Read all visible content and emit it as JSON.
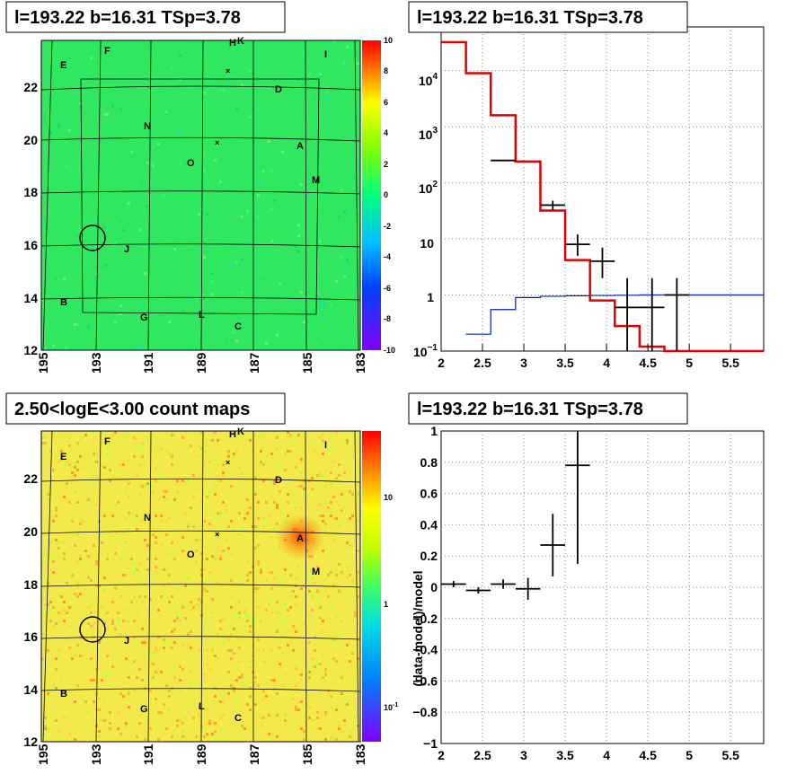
{
  "panels": {
    "p1_title": "l=193.22 b=16.31 TSp=3.78",
    "p2_title": "l=193.22 b=16.31 TSp=3.78",
    "p3_title": "2.50<logE<3.00 count maps",
    "p4_title": "l=193.22 b=16.31 TSp=3.78"
  },
  "chart_data": [
    {
      "type": "heatmap",
      "title": "l=193.22 b=16.31 TSp=3.78",
      "x_ticks": [
        "195",
        "193",
        "191",
        "189",
        "187",
        "185",
        "183"
      ],
      "y_ticks": [
        "12",
        "14",
        "16",
        "18",
        "20",
        "22"
      ],
      "colorbar_ticks": [
        "10",
        "8",
        "6",
        "4",
        "2",
        "0",
        "-2",
        "-4",
        "-6",
        "-8",
        "-10"
      ],
      "source_labels": [
        "F",
        "H",
        "K",
        "I",
        "E",
        "D",
        "N",
        "A",
        "O",
        "M",
        "J",
        "B",
        "G",
        "L",
        "C"
      ]
    },
    {
      "type": "line",
      "title": "l=193.22 b=16.31 TSp=3.78",
      "log_y": true,
      "x_ticks": [
        "2",
        "2.5",
        "3",
        "3.5",
        "4",
        "4.5",
        "5",
        "5.5"
      ],
      "y_ticks": [
        "10^-1",
        "1",
        "10",
        "10^2",
        "10^3",
        "10^4"
      ],
      "model_red_edges": [
        2.0,
        2.3,
        2.6,
        2.9,
        3.2,
        3.5,
        3.8,
        4.1,
        4.4,
        4.7,
        5.0,
        5.9
      ],
      "model_red_values": [
        32000,
        9000,
        1600,
        240,
        32,
        4.2,
        0.8,
        0.28,
        0.12,
        0.1,
        0.1
      ],
      "model_blue_edges": [
        2.3,
        2.6,
        2.9,
        3.2,
        3.5,
        3.8,
        4.1,
        4.4,
        5.9
      ],
      "model_blue_values": [
        0.2,
        0.55,
        0.9,
        0.95,
        0.97,
        0.98,
        0.99,
        1.0
      ],
      "data_points": [
        {
          "x": 2.75,
          "y": 250,
          "xerr": 0.15,
          "ylo": 250,
          "yhi": 250
        },
        {
          "x": 3.35,
          "y": 40,
          "xerr": 0.15,
          "ylo": 33,
          "yhi": 48
        },
        {
          "x": 3.65,
          "y": 8,
          "xerr": 0.15,
          "ylo": 5,
          "yhi": 12
        },
        {
          "x": 3.95,
          "y": 4,
          "xerr": 0.15,
          "ylo": 2,
          "yhi": 7
        },
        {
          "x": 4.25,
          "y": 0.6,
          "xerr": 0.15,
          "ylo": 0.1,
          "yhi": 2
        },
        {
          "x": 4.55,
          "y": 0.6,
          "xerr": 0.15,
          "ylo": 0.1,
          "yhi": 2
        },
        {
          "x": 4.85,
          "y": 1.0,
          "xerr": 0.15,
          "ylo": 0.1,
          "yhi": 2
        }
      ],
      "xlim": [
        2,
        5.9
      ],
      "ylim": [
        0.1,
        60000
      ]
    },
    {
      "type": "heatmap",
      "title": "2.50<logE<3.00 count maps",
      "x_ticks": [
        "195",
        "193",
        "191",
        "189",
        "187",
        "185",
        "183"
      ],
      "y_ticks": [
        "12",
        "14",
        "16",
        "18",
        "20",
        "22"
      ],
      "colorbar_ticks": [
        "10",
        "1",
        "10^-1"
      ],
      "source_labels": [
        "F",
        "H",
        "K",
        "I",
        "E",
        "D",
        "N",
        "A",
        "O",
        "M",
        "J",
        "B",
        "G",
        "L",
        "C"
      ]
    },
    {
      "type": "scatter",
      "title": "l=193.22 b=16.31 TSp=3.78",
      "ylabel": "(data-model)/model",
      "x_ticks": [
        "2",
        "2.5",
        "3",
        "3.5",
        "4",
        "4.5",
        "5",
        "5.5"
      ],
      "y_ticks": [
        "1",
        "0.8",
        "0.6",
        "0.4",
        "0.2",
        "0",
        "-0.2",
        "-0.4",
        "-0.6",
        "-0.8",
        "-1"
      ],
      "xlim": [
        2,
        5.9
      ],
      "ylim": [
        -1,
        1
      ],
      "data_points": [
        {
          "x": 2.15,
          "y": 0.02,
          "xerr": 0.15,
          "ylo": 0.0,
          "yhi": 0.04
        },
        {
          "x": 2.45,
          "y": -0.02,
          "xerr": 0.15,
          "ylo": -0.04,
          "yhi": 0.0
        },
        {
          "x": 2.75,
          "y": 0.02,
          "xerr": 0.15,
          "ylo": -0.01,
          "yhi": 0.05
        },
        {
          "x": 3.05,
          "y": -0.01,
          "xerr": 0.15,
          "ylo": -0.08,
          "yhi": 0.06
        },
        {
          "x": 3.35,
          "y": 0.27,
          "xerr": 0.15,
          "ylo": 0.07,
          "yhi": 0.47
        },
        {
          "x": 3.65,
          "y": 0.78,
          "xerr": 0.15,
          "ylo": 0.15,
          "yhi": 1.0
        }
      ]
    }
  ]
}
